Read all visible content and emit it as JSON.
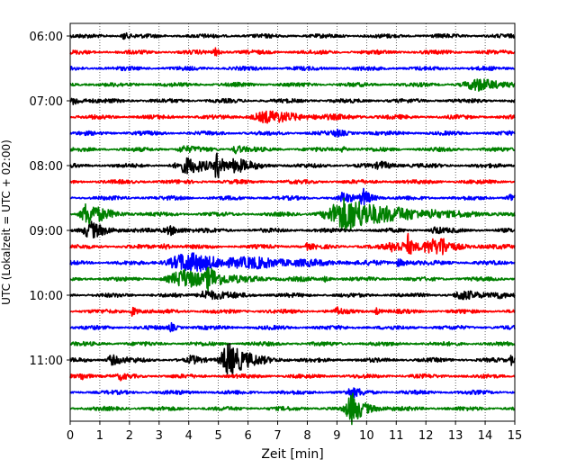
{
  "chart_data": {
    "type": "line",
    "title": "",
    "xlabel": "Zeit  [min]",
    "ylabel": "UTC (Lokalzeit = UTC + 02:00)",
    "xlim": [
      0,
      15
    ],
    "xticks": [
      0,
      1,
      2,
      3,
      4,
      5,
      6,
      7,
      8,
      9,
      10,
      11,
      12,
      13,
      14,
      15
    ],
    "grid": "vertical-dotted",
    "trace_interval_min": 15,
    "trace_colors": [
      "#000000",
      "#ff0000",
      "#0000ff",
      "#008000"
    ],
    "row_labels": [
      {
        "row": 0,
        "text": "06:00"
      },
      {
        "row": 4,
        "text": "07:00"
      },
      {
        "row": 8,
        "text": "08:00"
      },
      {
        "row": 12,
        "text": "09:00"
      },
      {
        "row": 16,
        "text": "10:00"
      },
      {
        "row": 20,
        "text": "11:00"
      }
    ],
    "traces": [
      {
        "start": "06:00",
        "color": "#000000",
        "events": [
          {
            "t": 1.8,
            "amp": 0.5,
            "dur": 0.15
          }
        ]
      },
      {
        "start": "06:15",
        "color": "#ff0000",
        "events": [
          {
            "t": 4.9,
            "amp": 0.4,
            "dur": 0.2
          }
        ]
      },
      {
        "start": "06:30",
        "color": "#0000ff",
        "events": []
      },
      {
        "start": "06:45",
        "color": "#008000",
        "events": [
          {
            "t": 13.8,
            "amp": 0.6,
            "dur": 1.2
          }
        ]
      },
      {
        "start": "07:00",
        "color": "#000000",
        "events": [
          {
            "t": 0.15,
            "amp": 0.5,
            "dur": 0.3
          }
        ]
      },
      {
        "start": "07:15",
        "color": "#ff0000",
        "events": [
          {
            "t": 6.7,
            "amp": 0.6,
            "dur": 1.5
          }
        ]
      },
      {
        "start": "07:30",
        "color": "#0000ff",
        "events": [
          {
            "t": 9.0,
            "amp": 0.3,
            "dur": 0.4
          }
        ]
      },
      {
        "start": "07:45",
        "color": "#008000",
        "events": [
          {
            "t": 3.8,
            "amp": 0.3,
            "dur": 0.5
          },
          {
            "t": 5.6,
            "amp": 0.5,
            "dur": 0.3
          },
          {
            "t": 9.2,
            "amp": 0.3,
            "dur": 0.2
          }
        ]
      },
      {
        "start": "08:00",
        "color": "#000000",
        "events": [
          {
            "t": 4.0,
            "amp": 0.8,
            "dur": 1.0
          },
          {
            "t": 4.95,
            "amp": 1.8,
            "dur": 0.2
          },
          {
            "t": 5.6,
            "amp": 0.7,
            "dur": 0.5
          },
          {
            "t": 10.5,
            "amp": 0.4,
            "dur": 0.5
          }
        ]
      },
      {
        "start": "08:15",
        "color": "#ff0000",
        "events": []
      },
      {
        "start": "08:30",
        "color": "#0000ff",
        "events": [
          {
            "t": 9.2,
            "amp": 0.6,
            "dur": 0.3
          },
          {
            "t": 9.9,
            "amp": 1.0,
            "dur": 0.3
          },
          {
            "t": 14.85,
            "amp": 0.5,
            "dur": 0.3
          }
        ]
      },
      {
        "start": "08:45",
        "color": "#008000",
        "events": [
          {
            "t": 0.6,
            "amp": 1.4,
            "dur": 0.6
          },
          {
            "t": 9.4,
            "amp": 2.0,
            "dur": 1.8
          },
          {
            "t": 12.2,
            "amp": 0.4,
            "dur": 0.2
          }
        ]
      },
      {
        "start": "09:00",
        "color": "#000000",
        "events": [
          {
            "t": 0.7,
            "amp": 0.9,
            "dur": 0.6
          },
          {
            "t": 3.4,
            "amp": 0.5,
            "dur": 0.5
          },
          {
            "t": 12.3,
            "amp": 0.4,
            "dur": 0.3
          }
        ]
      },
      {
        "start": "09:15",
        "color": "#ff0000",
        "events": [
          {
            "t": 3.2,
            "amp": 0.3,
            "dur": 0.3
          },
          {
            "t": 8.0,
            "amp": 0.3,
            "dur": 0.2
          },
          {
            "t": 11.0,
            "amp": 0.6,
            "dur": 0.8
          },
          {
            "t": 11.4,
            "amp": 1.2,
            "dur": 0.15
          },
          {
            "t": 12.2,
            "amp": 0.7,
            "dur": 0.9
          },
          {
            "t": 12.5,
            "amp": 0.9,
            "dur": 0.15
          }
        ]
      },
      {
        "start": "09:30",
        "color": "#0000ff",
        "events": [
          {
            "t": 4.0,
            "amp": 1.1,
            "dur": 1.8
          },
          {
            "t": 6.5,
            "amp": 0.3,
            "dur": 2.5
          },
          {
            "t": 11.1,
            "amp": 0.4,
            "dur": 0.3
          }
        ]
      },
      {
        "start": "09:45",
        "color": "#008000",
        "events": [
          {
            "t": 3.9,
            "amp": 1.0,
            "dur": 1.4
          },
          {
            "t": 4.7,
            "amp": 1.3,
            "dur": 0.3
          },
          {
            "t": 8.6,
            "amp": 0.3,
            "dur": 0.2
          }
        ]
      },
      {
        "start": "10:00",
        "color": "#000000",
        "events": [
          {
            "t": 4.6,
            "amp": 0.6,
            "dur": 0.7
          },
          {
            "t": 13.2,
            "amp": 0.5,
            "dur": 0.6
          },
          {
            "t": 14.4,
            "amp": 0.4,
            "dur": 0.5
          }
        ]
      },
      {
        "start": "10:15",
        "color": "#ff0000",
        "events": [
          {
            "t": 2.1,
            "amp": 0.6,
            "dur": 0.2
          },
          {
            "t": 9.0,
            "amp": 0.5,
            "dur": 0.15
          },
          {
            "t": 10.3,
            "amp": 0.5,
            "dur": 0.15
          }
        ]
      },
      {
        "start": "10:30",
        "color": "#0000ff",
        "events": [
          {
            "t": 3.4,
            "amp": 0.5,
            "dur": 0.2
          }
        ]
      },
      {
        "start": "10:45",
        "color": "#008000",
        "events": []
      },
      {
        "start": "11:00",
        "color": "#000000",
        "events": [
          {
            "t": 1.4,
            "amp": 0.6,
            "dur": 0.4
          },
          {
            "t": 4.1,
            "amp": 0.4,
            "dur": 0.3
          },
          {
            "t": 5.35,
            "amp": 2.1,
            "dur": 0.7
          },
          {
            "t": 14.9,
            "amp": 0.6,
            "dur": 0.15
          }
        ]
      },
      {
        "start": "11:15",
        "color": "#ff0000",
        "events": [
          {
            "t": 0.4,
            "amp": 0.4,
            "dur": 0.3
          },
          {
            "t": 1.7,
            "amp": 0.3,
            "dur": 0.2
          }
        ]
      },
      {
        "start": "11:30",
        "color": "#0000ff",
        "events": [
          {
            "t": 9.5,
            "amp": 0.5,
            "dur": 0.4
          }
        ]
      },
      {
        "start": "11:45",
        "color": "#008000",
        "events": [
          {
            "t": 9.5,
            "amp": 1.8,
            "dur": 0.5
          }
        ]
      }
    ]
  }
}
